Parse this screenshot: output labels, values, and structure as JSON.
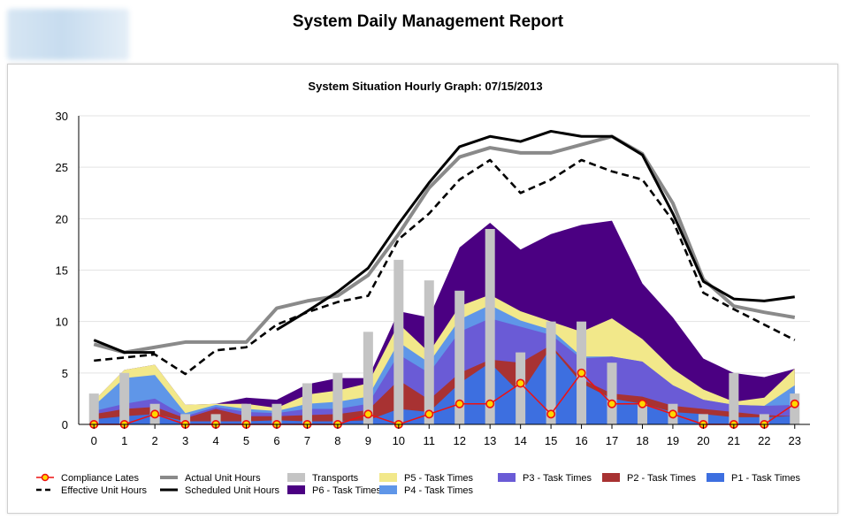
{
  "report": {
    "title": "System Daily Management Report"
  },
  "chart_data": {
    "type": "area",
    "title": "System Situation Hourly Graph: 07/15/2013",
    "xlabel": "",
    "ylabel": "",
    "ylim": [
      0,
      30
    ],
    "yticks": [
      0,
      5,
      10,
      15,
      20,
      25,
      30
    ],
    "grid": true,
    "legend_position": "bottom",
    "categories": [
      "0",
      "1",
      "2",
      "3",
      "4",
      "5",
      "6",
      "7",
      "8",
      "9",
      "10",
      "11",
      "12",
      "13",
      "14",
      "15",
      "16",
      "17",
      "18",
      "19",
      "20",
      "21",
      "22",
      "23"
    ],
    "stacked_areas": [
      {
        "name": "P1 - Task Times",
        "color": "#3d6fe0",
        "values": [
          0.5,
          0.8,
          1.0,
          0.3,
          0.3,
          0.3,
          0.4,
          0.3,
          0.3,
          0.4,
          1.5,
          1.2,
          4.0,
          6.0,
          3.0,
          7.5,
          4.0,
          2.5,
          2.0,
          1.2,
          1.0,
          0.7,
          0.7,
          0.8
        ]
      },
      {
        "name": "P2 - Task Times",
        "color": "#a83232",
        "values": [
          0.5,
          0.7,
          0.7,
          0.3,
          1.2,
          0.5,
          0.4,
          0.6,
          0.7,
          1.0,
          2.8,
          1.2,
          1.0,
          0.3,
          3.0,
          0.2,
          0.4,
          0.5,
          0.7,
          0.6,
          0.5,
          0.5,
          0.2,
          0.0
        ]
      },
      {
        "name": "P3 - Task Times",
        "color": "#6a5bd6",
        "values": [
          0.3,
          0.5,
          0.8,
          0.2,
          0.2,
          0.4,
          0.3,
          0.6,
          0.5,
          0.6,
          2.5,
          2.6,
          4.0,
          4.0,
          3.5,
          1.0,
          2.0,
          3.6,
          3.4,
          2.0,
          0.9,
          0.7,
          0.9,
          1.1
        ]
      },
      {
        "name": "P4 - Task Times",
        "color": "#5f96e8",
        "values": [
          0.5,
          2.5,
          2.3,
          0.3,
          0.2,
          0.3,
          0.2,
          0.5,
          0.7,
          0.7,
          1.2,
          1.0,
          1.2,
          1.3,
          0.6,
          0.5,
          0.2,
          0.0,
          0.0,
          0.0,
          0.0,
          0.0,
          0.0,
          1.9
        ]
      },
      {
        "name": "P5 - Task Times",
        "color": "#f2e88a",
        "values": [
          0.5,
          0.8,
          1.0,
          0.8,
          0.1,
          0.5,
          0.3,
          0.9,
          1.1,
          1.3,
          1.8,
          1.0,
          1.3,
          1.0,
          0.9,
          0.8,
          2.4,
          3.7,
          2.2,
          1.6,
          1.0,
          0.3,
          0.8,
          1.6
        ]
      },
      {
        "name": "P6 - Task Times",
        "color": "#4b0082",
        "values": [
          0.0,
          0.0,
          0.0,
          0.0,
          0.0,
          0.6,
          0.8,
          1.0,
          1.2,
          0.5,
          1.2,
          3.4,
          5.7,
          7.0,
          6.0,
          8.5,
          10.4,
          9.5,
          5.4,
          5.0,
          3.0,
          2.8,
          2.0,
          0.0
        ]
      }
    ],
    "bars": {
      "name": "Transports",
      "color": "#c4c4c4",
      "values": [
        3,
        5,
        2,
        1,
        1,
        2,
        2,
        4,
        5,
        9,
        16,
        14,
        13,
        19,
        7,
        10,
        10,
        6,
        2,
        2,
        1,
        5,
        1,
        3
      ]
    },
    "lines": [
      {
        "name": "Actual Unit Hours",
        "color": "#8a8a8a",
        "style": "solid",
        "values": [
          7.8,
          7.0,
          7.5,
          8.0,
          8.0,
          8.0,
          11.3,
          12.0,
          12.5,
          14.5,
          18.5,
          23.0,
          26.0,
          26.9,
          26.4,
          26.4,
          27.2,
          28.0,
          26.3,
          21.5,
          14.1,
          11.5,
          10.9,
          10.4
        ]
      },
      {
        "name": "Scheduled Unit Hours",
        "color": "#000000",
        "style": "solid",
        "values": [
          8.2,
          7.0,
          7.0,
          null,
          null,
          null,
          9.2,
          11.0,
          12.9,
          15.2,
          19.5,
          23.5,
          27.0,
          28.0,
          27.5,
          28.5,
          28.0,
          28.0,
          26.2,
          20.5,
          13.9,
          12.2,
          12.0,
          12.4
        ]
      },
      {
        "name": "Effective Unit Hours",
        "color": "#000000",
        "style": "dashed",
        "values": [
          6.2,
          6.5,
          6.8,
          4.9,
          7.2,
          7.5,
          9.7,
          10.9,
          11.9,
          12.5,
          18.0,
          20.5,
          23.8,
          25.7,
          22.5,
          23.8,
          25.7,
          24.6,
          23.8,
          19.8,
          12.8,
          11.2,
          9.7,
          8.2
        ]
      },
      {
        "name": "Compliance Lates",
        "color": "#ee1111",
        "style": "marker",
        "values": [
          0,
          0,
          1,
          0,
          0,
          0,
          0,
          0,
          0,
          1,
          0,
          1,
          2,
          2,
          4,
          1,
          5,
          2,
          2,
          1,
          0,
          0,
          0,
          2
        ]
      }
    ],
    "legend": [
      [
        "Compliance Lates",
        "Actual Unit Hours",
        "Transports",
        "P5 - Task Times",
        "P3 - Task Times",
        "P2 - Task Times",
        "P1 - Task Times"
      ],
      [
        "Effective Unit Hours",
        "Scheduled Unit Hours",
        "P6 - Task Times",
        "P4 - Task Times"
      ]
    ]
  }
}
